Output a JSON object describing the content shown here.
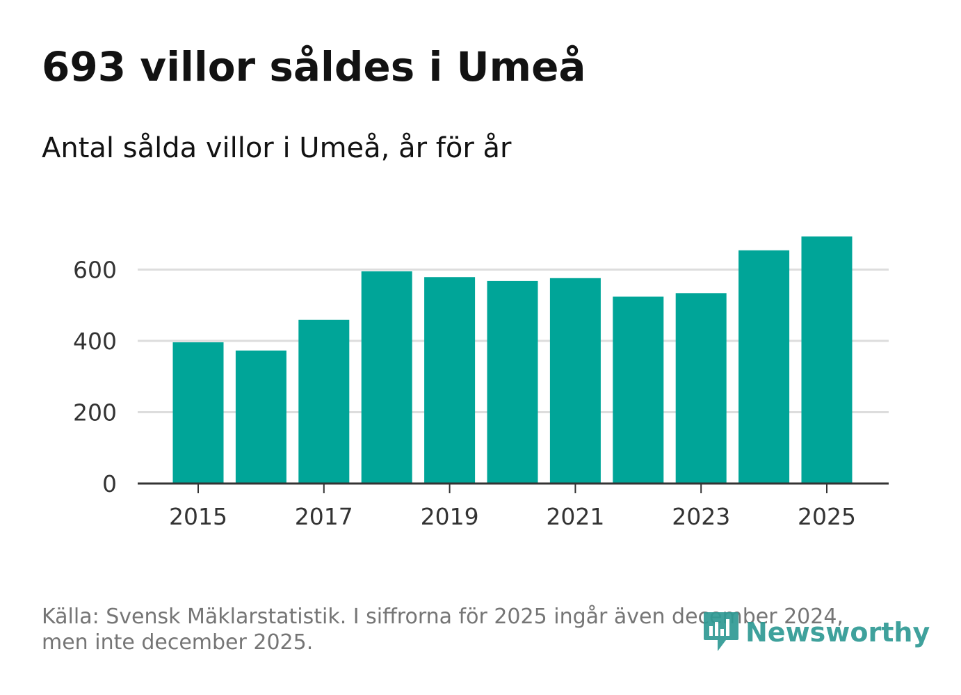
{
  "header": {
    "title": "693 villor såldes i Umeå",
    "subtitle": "Antal sålda villor i Umeå, år för år"
  },
  "footer": {
    "source_line1": "Källa: Svensk Mäklarstatistik. I siffrorna för 2025 ingår även december 2024,",
    "source_line2": "men inte december 2025.",
    "logo_text": "Newsworthy",
    "logo_icon": "bar-chart-speech-bubble-icon"
  },
  "colors": {
    "bar": "#00a598",
    "grid": "#dddddd",
    "axis": "#333333",
    "logo": "#2f9a94"
  },
  "chart_data": {
    "type": "bar",
    "title": "693 villor såldes i Umeå",
    "subtitle": "Antal sålda villor i Umeå, år för år",
    "categories": [
      "2015",
      "2016",
      "2017",
      "2018",
      "2019",
      "2020",
      "2021",
      "2022",
      "2023",
      "2024",
      "2025"
    ],
    "values": [
      396,
      373,
      459,
      595,
      579,
      568,
      576,
      524,
      534,
      654,
      693
    ],
    "x_tick_labels": [
      "2015",
      "2017",
      "2019",
      "2021",
      "2023",
      "2025"
    ],
    "y_ticks": [
      0,
      200,
      400,
      600
    ],
    "ylim": [
      0,
      700
    ],
    "xlabel": "",
    "ylabel": "",
    "grid": true,
    "legend": "none"
  }
}
